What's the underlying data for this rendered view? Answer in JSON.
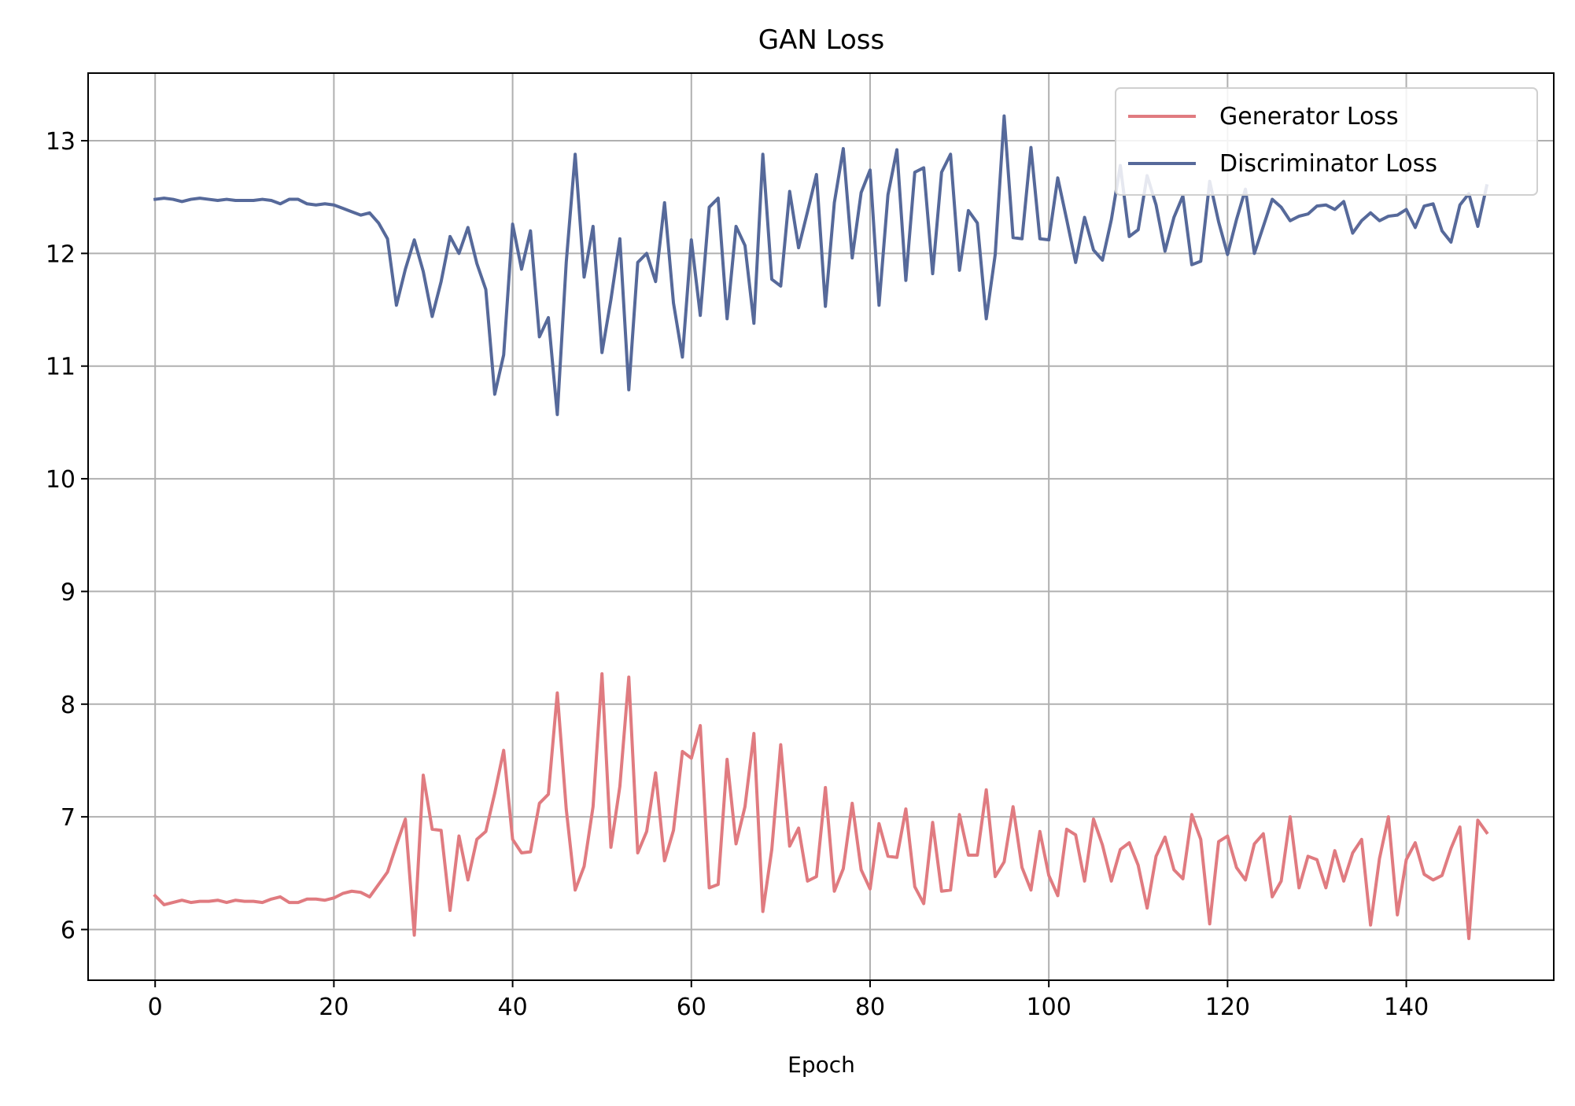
{
  "chart_data": {
    "type": "line",
    "title": "GAN Loss",
    "xlabel": "Epoch",
    "ylabel": "",
    "xlim": [
      -7.5,
      156.5
    ],
    "ylim": [
      5.55,
      13.6
    ],
    "x_ticks": [
      0,
      20,
      40,
      60,
      80,
      100,
      120,
      140
    ],
    "y_ticks": [
      6,
      7,
      8,
      9,
      10,
      11,
      12,
      13
    ],
    "grid": true,
    "legend_position": "top-right",
    "x": [
      0,
      1,
      2,
      3,
      4,
      5,
      6,
      7,
      8,
      9,
      10,
      11,
      12,
      13,
      14,
      15,
      16,
      17,
      18,
      19,
      20,
      21,
      22,
      23,
      24,
      25,
      26,
      27,
      28,
      29,
      30,
      31,
      32,
      33,
      34,
      35,
      36,
      37,
      38,
      39,
      40,
      41,
      42,
      43,
      44,
      45,
      46,
      47,
      48,
      49,
      50,
      51,
      52,
      53,
      54,
      55,
      56,
      57,
      58,
      59,
      60,
      61,
      62,
      63,
      64,
      65,
      66,
      67,
      68,
      69,
      70,
      71,
      72,
      73,
      74,
      75,
      76,
      77,
      78,
      79,
      80,
      81,
      82,
      83,
      84,
      85,
      86,
      87,
      88,
      89,
      90,
      91,
      92,
      93,
      94,
      95,
      96,
      97,
      98,
      99,
      100,
      101,
      102,
      103,
      104,
      105,
      106,
      107,
      108,
      109,
      110,
      111,
      112,
      113,
      114,
      115,
      116,
      117,
      118,
      119,
      120,
      121,
      122,
      123,
      124,
      125,
      126,
      127,
      128,
      129,
      130,
      131,
      132,
      133,
      134,
      135,
      136,
      137,
      138,
      139,
      140,
      141,
      142,
      143,
      144,
      145,
      146,
      147,
      148,
      149
    ],
    "series": [
      {
        "name": "Generator Loss",
        "color": "#e07b80",
        "values": [
          6.3,
          6.22,
          6.24,
          6.26,
          6.24,
          6.25,
          6.25,
          6.26,
          6.24,
          6.26,
          6.25,
          6.25,
          6.24,
          6.27,
          6.29,
          6.24,
          6.24,
          6.27,
          6.27,
          6.26,
          6.28,
          6.32,
          6.34,
          6.33,
          6.29,
          6.4,
          6.51,
          6.75,
          6.98,
          5.95,
          7.37,
          6.89,
          6.88,
          6.17,
          6.83,
          6.44,
          6.8,
          6.87,
          7.21,
          7.59,
          6.8,
          6.68,
          6.69,
          7.12,
          7.2,
          8.1,
          7.07,
          6.35,
          6.56,
          7.09,
          8.27,
          6.73,
          7.27,
          8.24,
          6.68,
          6.87,
          7.39,
          6.61,
          6.88,
          7.58,
          7.52,
          7.81,
          6.37,
          6.4,
          7.51,
          6.76,
          7.09,
          7.74,
          6.16,
          6.71,
          7.64,
          6.74,
          6.9,
          6.43,
          6.47,
          7.26,
          6.34,
          6.54,
          7.12,
          6.53,
          6.36,
          6.94,
          6.65,
          6.64,
          7.07,
          6.38,
          6.23,
          6.95,
          6.34,
          6.35,
          7.02,
          6.66,
          6.66,
          7.24,
          6.47,
          6.6,
          7.09,
          6.55,
          6.35,
          6.87,
          6.48,
          6.3,
          6.89,
          6.84,
          6.43,
          6.98,
          6.75,
          6.43,
          6.71,
          6.77,
          6.57,
          6.19,
          6.65,
          6.82,
          6.53,
          6.45,
          7.02,
          6.8,
          6.05,
          6.78,
          6.83,
          6.55,
          6.44,
          6.76,
          6.85,
          6.29,
          6.43,
          7.0,
          6.37,
          6.65,
          6.62,
          6.37,
          6.7,
          6.43,
          6.68,
          6.8,
          6.04,
          6.63,
          7.0,
          6.13,
          6.62,
          6.77,
          6.49,
          6.44,
          6.48,
          6.72,
          6.91,
          5.92,
          6.97,
          6.86
        ]
      },
      {
        "name": "Discriminator Loss",
        "color": "#56699a",
        "values": [
          12.48,
          12.49,
          12.48,
          12.46,
          12.48,
          12.49,
          12.48,
          12.47,
          12.48,
          12.47,
          12.47,
          12.47,
          12.48,
          12.47,
          12.44,
          12.48,
          12.48,
          12.44,
          12.43,
          12.44,
          12.43,
          12.4,
          12.37,
          12.34,
          12.36,
          12.27,
          12.13,
          11.54,
          11.86,
          12.12,
          11.84,
          11.44,
          11.75,
          12.15,
          12.0,
          12.23,
          11.91,
          11.68,
          10.75,
          11.1,
          12.26,
          11.86,
          12.2,
          11.26,
          11.43,
          10.57,
          11.92,
          12.88,
          11.79,
          12.24,
          11.12,
          11.59,
          12.13,
          10.79,
          11.92,
          12.0,
          11.75,
          12.45,
          11.56,
          11.08,
          12.12,
          11.45,
          12.41,
          12.49,
          11.42,
          12.24,
          12.07,
          11.38,
          12.88,
          11.77,
          11.71,
          12.55,
          12.05,
          12.37,
          12.7,
          11.53,
          12.45,
          12.93,
          11.96,
          12.54,
          12.74,
          11.54,
          12.52,
          12.92,
          11.76,
          12.72,
          12.76,
          11.82,
          12.72,
          12.88,
          11.85,
          12.38,
          12.27,
          11.42,
          11.99,
          13.22,
          12.14,
          12.13,
          12.94,
          12.13,
          12.12,
          12.67,
          12.3,
          11.92,
          12.32,
          12.03,
          11.94,
          12.3,
          12.78,
          12.15,
          12.21,
          12.69,
          12.43,
          12.02,
          12.32,
          12.51,
          11.9,
          11.93,
          12.64,
          12.28,
          11.99,
          12.3,
          12.57,
          12.0,
          12.24,
          12.48,
          12.41,
          12.29,
          12.33,
          12.35,
          12.42,
          12.43,
          12.39,
          12.46,
          12.18,
          12.29,
          12.36,
          12.29,
          12.33,
          12.34,
          12.39,
          12.23,
          12.42,
          12.44,
          12.2,
          12.1,
          12.43,
          12.53,
          12.24,
          12.6
        ]
      }
    ]
  }
}
